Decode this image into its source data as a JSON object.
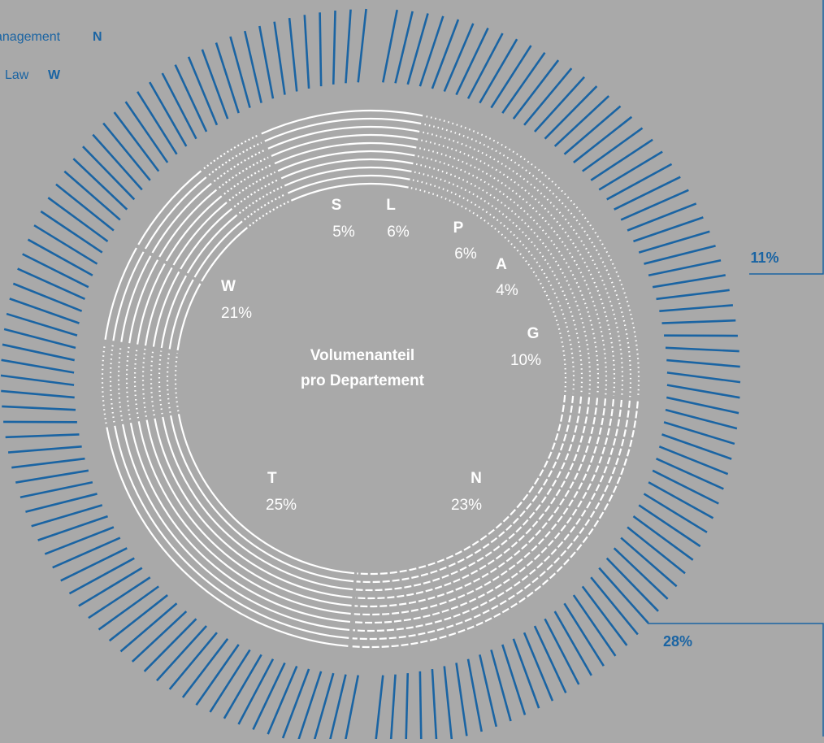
{
  "colors": {
    "background": "#a9a9a9",
    "inner_ring": "#ffffff",
    "outer_ring": "#1a64a3"
  },
  "legend": [
    {
      "text": "anagement",
      "letter": "N"
    },
    {
      "text": "Law",
      "letter": "W"
    }
  ],
  "chart_data": {
    "type": "pie",
    "style": "radial-line donut",
    "center_title": [
      "Volumenanteil",
      "pro Departement"
    ],
    "categories": [
      "S",
      "L",
      "P",
      "A",
      "G",
      "N",
      "T",
      "W"
    ],
    "values": [
      5,
      6,
      6,
      4,
      10,
      23,
      25,
      21
    ],
    "labels": [
      {
        "letter": "S",
        "pct": "5%"
      },
      {
        "letter": "L",
        "pct": "6%"
      },
      {
        "letter": "P",
        "pct": "6%"
      },
      {
        "letter": "A",
        "pct": "4%"
      },
      {
        "letter": "G",
        "pct": "10%"
      },
      {
        "letter": "N",
        "pct": "23%"
      },
      {
        "letter": "T",
        "pct": "25%"
      },
      {
        "letter": "W",
        "pct": "21%"
      }
    ],
    "callouts": [
      "11%",
      "28%"
    ]
  }
}
